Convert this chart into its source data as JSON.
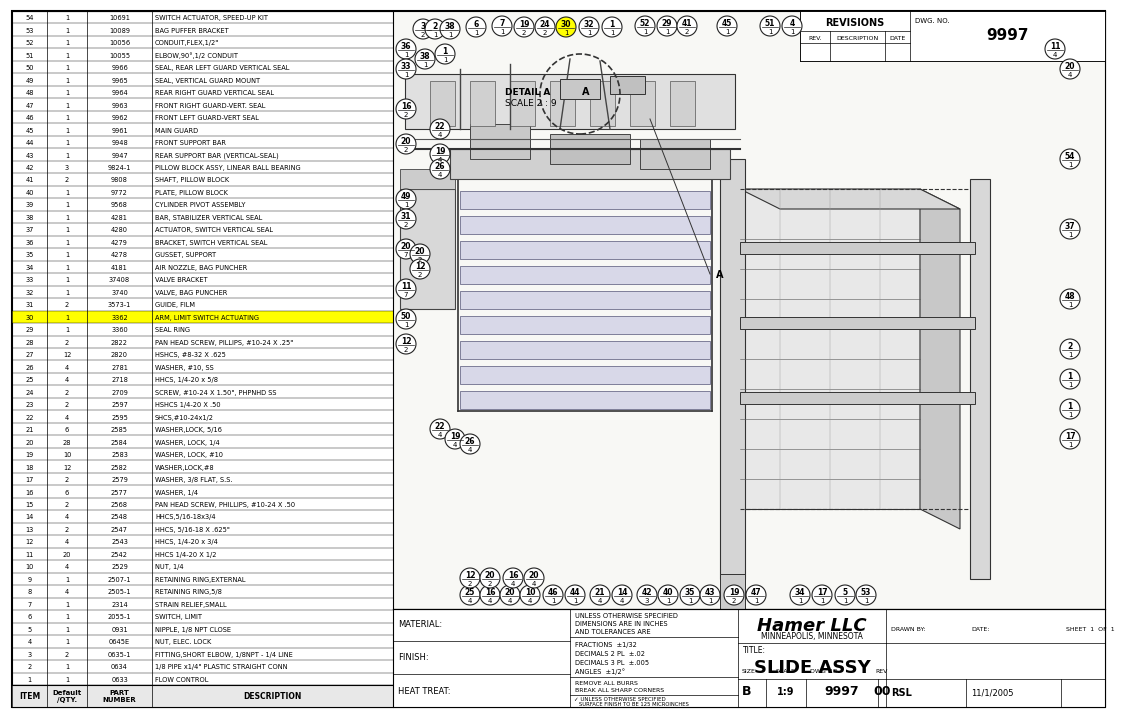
{
  "drawing_no": "9997",
  "rev": "00",
  "title_block_title": "SLIDE ASSY",
  "company": "Hamer LLC",
  "company_location": "MINNEAPOLIS, MINNESOTA",
  "scale": "1:9",
  "size": "B",
  "drawn_by": "RSL",
  "date": "11/1/2005",
  "sheet": "SHEET  1  OF  1",
  "highlight_row": 30,
  "bom_rows": [
    [
      54,
      1,
      "10691",
      "SWITCH ACTUATOR, SPEED-UP KIT"
    ],
    [
      53,
      1,
      "10089",
      "BAG PUFFER BRACKET"
    ],
    [
      52,
      1,
      "10056",
      "CONDUIT,FLEX,1/2\""
    ],
    [
      51,
      1,
      "10055",
      "ELBOW,90°,1/2 CONDUIT"
    ],
    [
      50,
      1,
      "9966",
      "SEAL, REAR LEFT GUARD VERTICAL SEAL"
    ],
    [
      49,
      1,
      "9965",
      "SEAL, VERTICAL GUARD MOUNT"
    ],
    [
      48,
      1,
      "9964",
      "REAR RIGHT GUARD VERTICAL SEAL"
    ],
    [
      47,
      1,
      "9963",
      "FRONT RIGHT GUARD-VERT. SEAL"
    ],
    [
      46,
      1,
      "9962",
      "FRONT LEFT GUARD-VERT SEAL"
    ],
    [
      45,
      1,
      "9961",
      "MAIN GUARD"
    ],
    [
      44,
      1,
      "9948",
      "FRONT SUPPORT BAR"
    ],
    [
      43,
      1,
      "9947",
      "REAR SUPPORT BAR (VERTICAL-SEAL)"
    ],
    [
      42,
      3,
      "9824-1",
      "PILLOW BLOCK ASSY, LINEAR BALL BEARING"
    ],
    [
      41,
      2,
      "9808",
      "SHAFT, PILLOW BLOCK"
    ],
    [
      40,
      1,
      "9772",
      "PLATE, PILLOW BLOCK"
    ],
    [
      39,
      1,
      "9568",
      "CYLINDER PIVOT ASSEMBLY"
    ],
    [
      38,
      1,
      "4281",
      "BAR, STABILIZER VERTICAL SEAL"
    ],
    [
      37,
      1,
      "4280",
      "ACTUATOR, SWITCH VERTICAL SEAL"
    ],
    [
      36,
      1,
      "4279",
      "BRACKET, SWITCH VERTICAL SEAL"
    ],
    [
      35,
      1,
      "4278",
      "GUSSET, SUPPORT"
    ],
    [
      34,
      1,
      "4181",
      "AIR NOZZLE, BAG PUNCHER"
    ],
    [
      33,
      1,
      "37408",
      "VALVE BRACKET"
    ],
    [
      32,
      1,
      "3740",
      "VALVE, BAG PUNCHER"
    ],
    [
      31,
      2,
      "3573-1",
      "GUIDE, FILM"
    ],
    [
      30,
      1,
      "3362",
      "ARM, LIMIT SWITCH ACTUATING"
    ],
    [
      29,
      1,
      "3360",
      "SEAL RING"
    ],
    [
      28,
      2,
      "2822",
      "PAN HEAD SCREW, PILLIPS, #10-24 X .25\""
    ],
    [
      27,
      12,
      "2820",
      "HSHCS, #8-32 X .625"
    ],
    [
      26,
      4,
      "2781",
      "WASHER, #10, SS"
    ],
    [
      25,
      4,
      "2718",
      "HHCS, 1/4-20 x 5/8"
    ],
    [
      24,
      2,
      "2709",
      "SCREW, #10-24 X 1.50\", PHPNHD SS"
    ],
    [
      23,
      2,
      "2597",
      "HSHCS 1/4-20 X .50"
    ],
    [
      22,
      4,
      "2595",
      "SHCS,#10-24x1/2"
    ],
    [
      21,
      6,
      "2585",
      "WASHER,LOCK, 5/16"
    ],
    [
      20,
      28,
      "2584",
      "WASHER, LOCK, 1/4"
    ],
    [
      19,
      10,
      "2583",
      "WASHER, LOCK, #10"
    ],
    [
      18,
      12,
      "2582",
      "WASHER,LOCK,#8"
    ],
    [
      17,
      2,
      "2579",
      "WASHER, 3/8 FLAT, S.S."
    ],
    [
      16,
      6,
      "2577",
      "WASHER, 1/4"
    ],
    [
      15,
      2,
      "2568",
      "PAN HEAD SCREW, PHILLIPS, #10-24 X .50"
    ],
    [
      14,
      4,
      "2548",
      "HHCS,5/16-18x3/4"
    ],
    [
      13,
      2,
      "2547",
      "HHCS, 5/16-18 X .625\""
    ],
    [
      12,
      4,
      "2543",
      "HHCS, 1/4-20 x 3/4"
    ],
    [
      11,
      20,
      "2542",
      "HHCS 1/4-20 X 1/2"
    ],
    [
      10,
      4,
      "2529",
      "NUT, 1/4"
    ],
    [
      9,
      1,
      "2507-1",
      "RETAINING RING,EXTERNAL"
    ],
    [
      8,
      4,
      "2505-1",
      "RETAINING RING,5/8"
    ],
    [
      7,
      1,
      "2314",
      "STRAIN RELIEF,SMALL"
    ],
    [
      6,
      1,
      "2055-1",
      "SWITCH, LIMIT"
    ],
    [
      5,
      1,
      "0931",
      "NIPPLE, 1/8 NPT CLOSE"
    ],
    [
      4,
      1,
      "0645E",
      "NUT, ELEC. LOCK"
    ],
    [
      3,
      2,
      "0635-1",
      "FITTING,SHORT ELBOW, 1/8NPT - 1/4 LINE"
    ],
    [
      2,
      1,
      "0634",
      "1/8 PIPE x1/4\" PLASTIC STRAIGHT CONN"
    ],
    [
      1,
      1,
      "0633",
      "FLOW CONTROL"
    ]
  ]
}
